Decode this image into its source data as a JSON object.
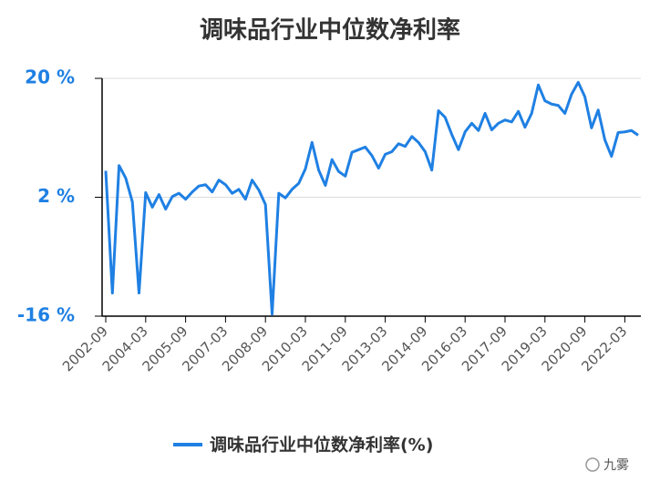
{
  "chart_data": {
    "type": "line",
    "title": "调味品行业中位数净利率",
    "categories": [
      "2002-09",
      null,
      null,
      null,
      null,
      null,
      "2004-03",
      null,
      null,
      null,
      null,
      null,
      "2005-09",
      null,
      null,
      null,
      null,
      null,
      "2007-03",
      null,
      null,
      null,
      null,
      null,
      "2008-09",
      null,
      null,
      null,
      null,
      null,
      "2010-03",
      null,
      null,
      null,
      null,
      null,
      "2011-09",
      null,
      null,
      null,
      null,
      null,
      "2013-03",
      null,
      null,
      null,
      null,
      null,
      "2014-09",
      null,
      null,
      null,
      null,
      null,
      "2016-03",
      null,
      null,
      null,
      null,
      null,
      "2017-09",
      null,
      null,
      null,
      null,
      null,
      "2019-03",
      null,
      null,
      null,
      null,
      null,
      "2020-09",
      null,
      null,
      null,
      null,
      null,
      "2022-03",
      null,
      null
    ],
    "series": [
      {
        "name": "调味品行业中位数净利率(%)",
        "color": "#1f80e3",
        "values": [
          6.0,
          -12.5,
          6.8,
          4.9,
          1.3,
          -12.5,
          2.7,
          0.5,
          2.4,
          0.2,
          2.1,
          2.6,
          1.7,
          2.8,
          3.7,
          3.9,
          2.8,
          4.6,
          3.9,
          2.6,
          3.2,
          1.7,
          4.6,
          3.1,
          0.9,
          -15.7,
          2.6,
          1.9,
          3.2,
          4.1,
          6.3,
          10.3,
          6.1,
          3.8,
          7.7,
          5.9,
          5.2,
          8.8,
          9.2,
          9.6,
          8.3,
          6.4,
          8.5,
          8.9,
          10.1,
          9.7,
          11.2,
          10.3,
          8.9,
          6.1,
          15.1,
          14.1,
          11.5,
          9.2,
          11.9,
          13.2,
          12.1,
          14.7,
          12.2,
          13.2,
          13.7,
          13.4,
          15.0,
          12.6,
          14.7,
          19.0,
          16.6,
          16.1,
          15.9,
          14.7,
          17.6,
          19.4,
          17.2,
          12.5,
          15.2,
          10.7,
          8.2,
          11.8,
          11.9,
          12.1,
          11.4
        ]
      }
    ],
    "ylim": [
      -16,
      20
    ],
    "yticks": [
      {
        "value": -16,
        "label": "-16 %"
      },
      {
        "value": 2,
        "label": "2 %"
      },
      {
        "value": 20,
        "label": "20 %"
      }
    ],
    "grid": true,
    "legend": "bottom",
    "watermark": "九雾"
  }
}
